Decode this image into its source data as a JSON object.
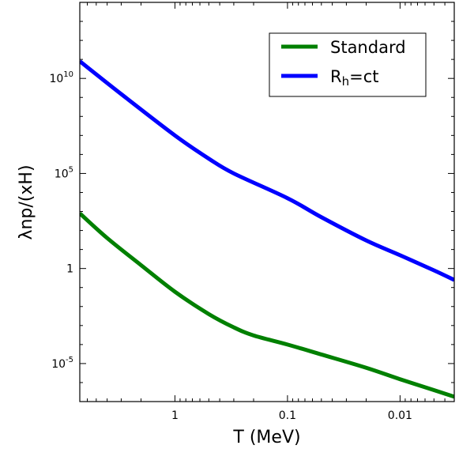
{
  "chart_data": {
    "type": "line",
    "xlabel": "T (MeV)",
    "ylabel": "λnp/(xH)",
    "x_scale": "log",
    "x_inverted": true,
    "y_scale": "log",
    "xlim": [
      7.0,
      0.0033
    ],
    "ylim": [
      1e-07,
      100000000000000.0
    ],
    "grid": false,
    "legend_position": "top-right",
    "x_ticks": [
      {
        "value": 1,
        "label": "1"
      },
      {
        "value": 0.1,
        "label": "0.1"
      },
      {
        "value": 0.01,
        "label": "0.01"
      }
    ],
    "y_ticks": [
      {
        "value": 1e-05,
        "base": "10",
        "exp": "-5"
      },
      {
        "value": 1,
        "base": "1",
        "exp": ""
      },
      {
        "value": 100000.0,
        "base": "10",
        "exp": "5"
      },
      {
        "value": 10000000000.0,
        "base": "10",
        "exp": "10"
      }
    ],
    "series": [
      {
        "name": "Standard",
        "color": "#008000",
        "x": [
          7.0,
          4.0,
          2.0,
          1.0,
          0.5,
          0.3,
          0.2,
          0.1,
          0.05,
          0.02,
          0.01,
          0.005,
          0.0033
        ],
        "y": [
          800,
          40,
          1.5,
          0.06,
          0.004,
          0.0008,
          0.0003,
          0.0001,
          3e-05,
          6e-06,
          1.5e-06,
          4e-07,
          1.8e-07
        ]
      },
      {
        "name": "Rh=ct",
        "name_base": "R",
        "name_sub": "h",
        "name_rest": "=ct",
        "color": "#0000ff",
        "x": [
          7.0,
          3.0,
          1.0,
          0.5,
          0.3,
          0.1,
          0.05,
          0.02,
          0.01,
          0.005,
          0.0033
        ],
        "y": [
          80000000000,
          1500000000,
          10000000,
          600000,
          100000,
          5000,
          500,
          30,
          5,
          0.8,
          0.25
        ]
      }
    ]
  }
}
